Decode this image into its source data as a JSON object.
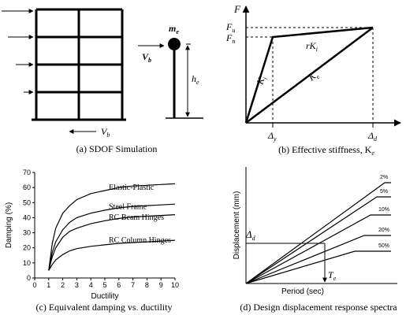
{
  "panel_a": {
    "caption": "(a) SDOF Simulation",
    "labels": {
      "mass": "m",
      "mass_sub": "e",
      "base_shear_top": "V",
      "base_shear_top_sub": "b",
      "base_shear_bottom": "V",
      "base_shear_bottom_sub": "b",
      "height": "h",
      "height_sub": "e"
    }
  },
  "panel_b": {
    "caption_main": "(b) Effective stiffness, K",
    "caption_sub": "e",
    "labels": {
      "F": "F",
      "Fu": "F",
      "Fu_sub": "u",
      "Fn": "F",
      "Fn_sub": "n",
      "rKi": "rK",
      "rKi_sub": "i",
      "Ki": "K",
      "Ki_sub": "i",
      "Ke": "K",
      "Ke_sub": "e",
      "Dy": "Δ",
      "Dy_sub": "y",
      "Dd": "Δ",
      "Dd_sub": "d"
    }
  },
  "panel_c": {
    "caption": "(c) Equivalent damping vs. ductility"
  },
  "panel_d": {
    "caption": "(d) Design displacement response spectra",
    "ylabel": "Displacement (mm)",
    "xlabel": "Period (sec)",
    "delta_label": "Δ",
    "delta_sub": "d",
    "te_label": "T",
    "te_sub": "e",
    "curves": [
      "2%",
      "5%",
      "10%",
      "20%",
      "50%"
    ]
  },
  "chart_data": {
    "type": "line",
    "xlabel": "Ductility",
    "ylabel": "Damping (%)",
    "xlim": [
      0,
      10
    ],
    "ylim": [
      0,
      70
    ],
    "xticks": [
      0,
      1,
      2,
      3,
      4,
      5,
      6,
      7,
      8,
      9,
      10
    ],
    "yticks": [
      0,
      10,
      20,
      30,
      40,
      50,
      60,
      70
    ],
    "x": [
      1,
      1.25,
      1.5,
      2,
      2.5,
      3,
      4,
      5,
      6,
      7,
      8,
      9,
      10
    ],
    "series": [
      {
        "name": "Elastic-Plastic",
        "values": [
          5,
          23,
          33,
          43,
          48,
          52,
          56,
          58,
          60,
          61,
          61.5,
          62,
          62.5
        ]
      },
      {
        "name": "Steel Frame",
        "values": [
          5,
          17,
          24,
          32,
          37,
          40,
          43,
          45,
          46.5,
          47.5,
          48,
          48.5,
          49
        ]
      },
      {
        "name": "RC Beam Hinges",
        "values": [
          5,
          14,
          20,
          27,
          31,
          33,
          36,
          38,
          39.5,
          40.5,
          41,
          41.5,
          42
        ]
      },
      {
        "name": "RC Column Hinges",
        "values": [
          5,
          9,
          12,
          15.5,
          18,
          19.5,
          21,
          22,
          23,
          23.5,
          24,
          24.5,
          25
        ]
      }
    ],
    "grid": false
  }
}
